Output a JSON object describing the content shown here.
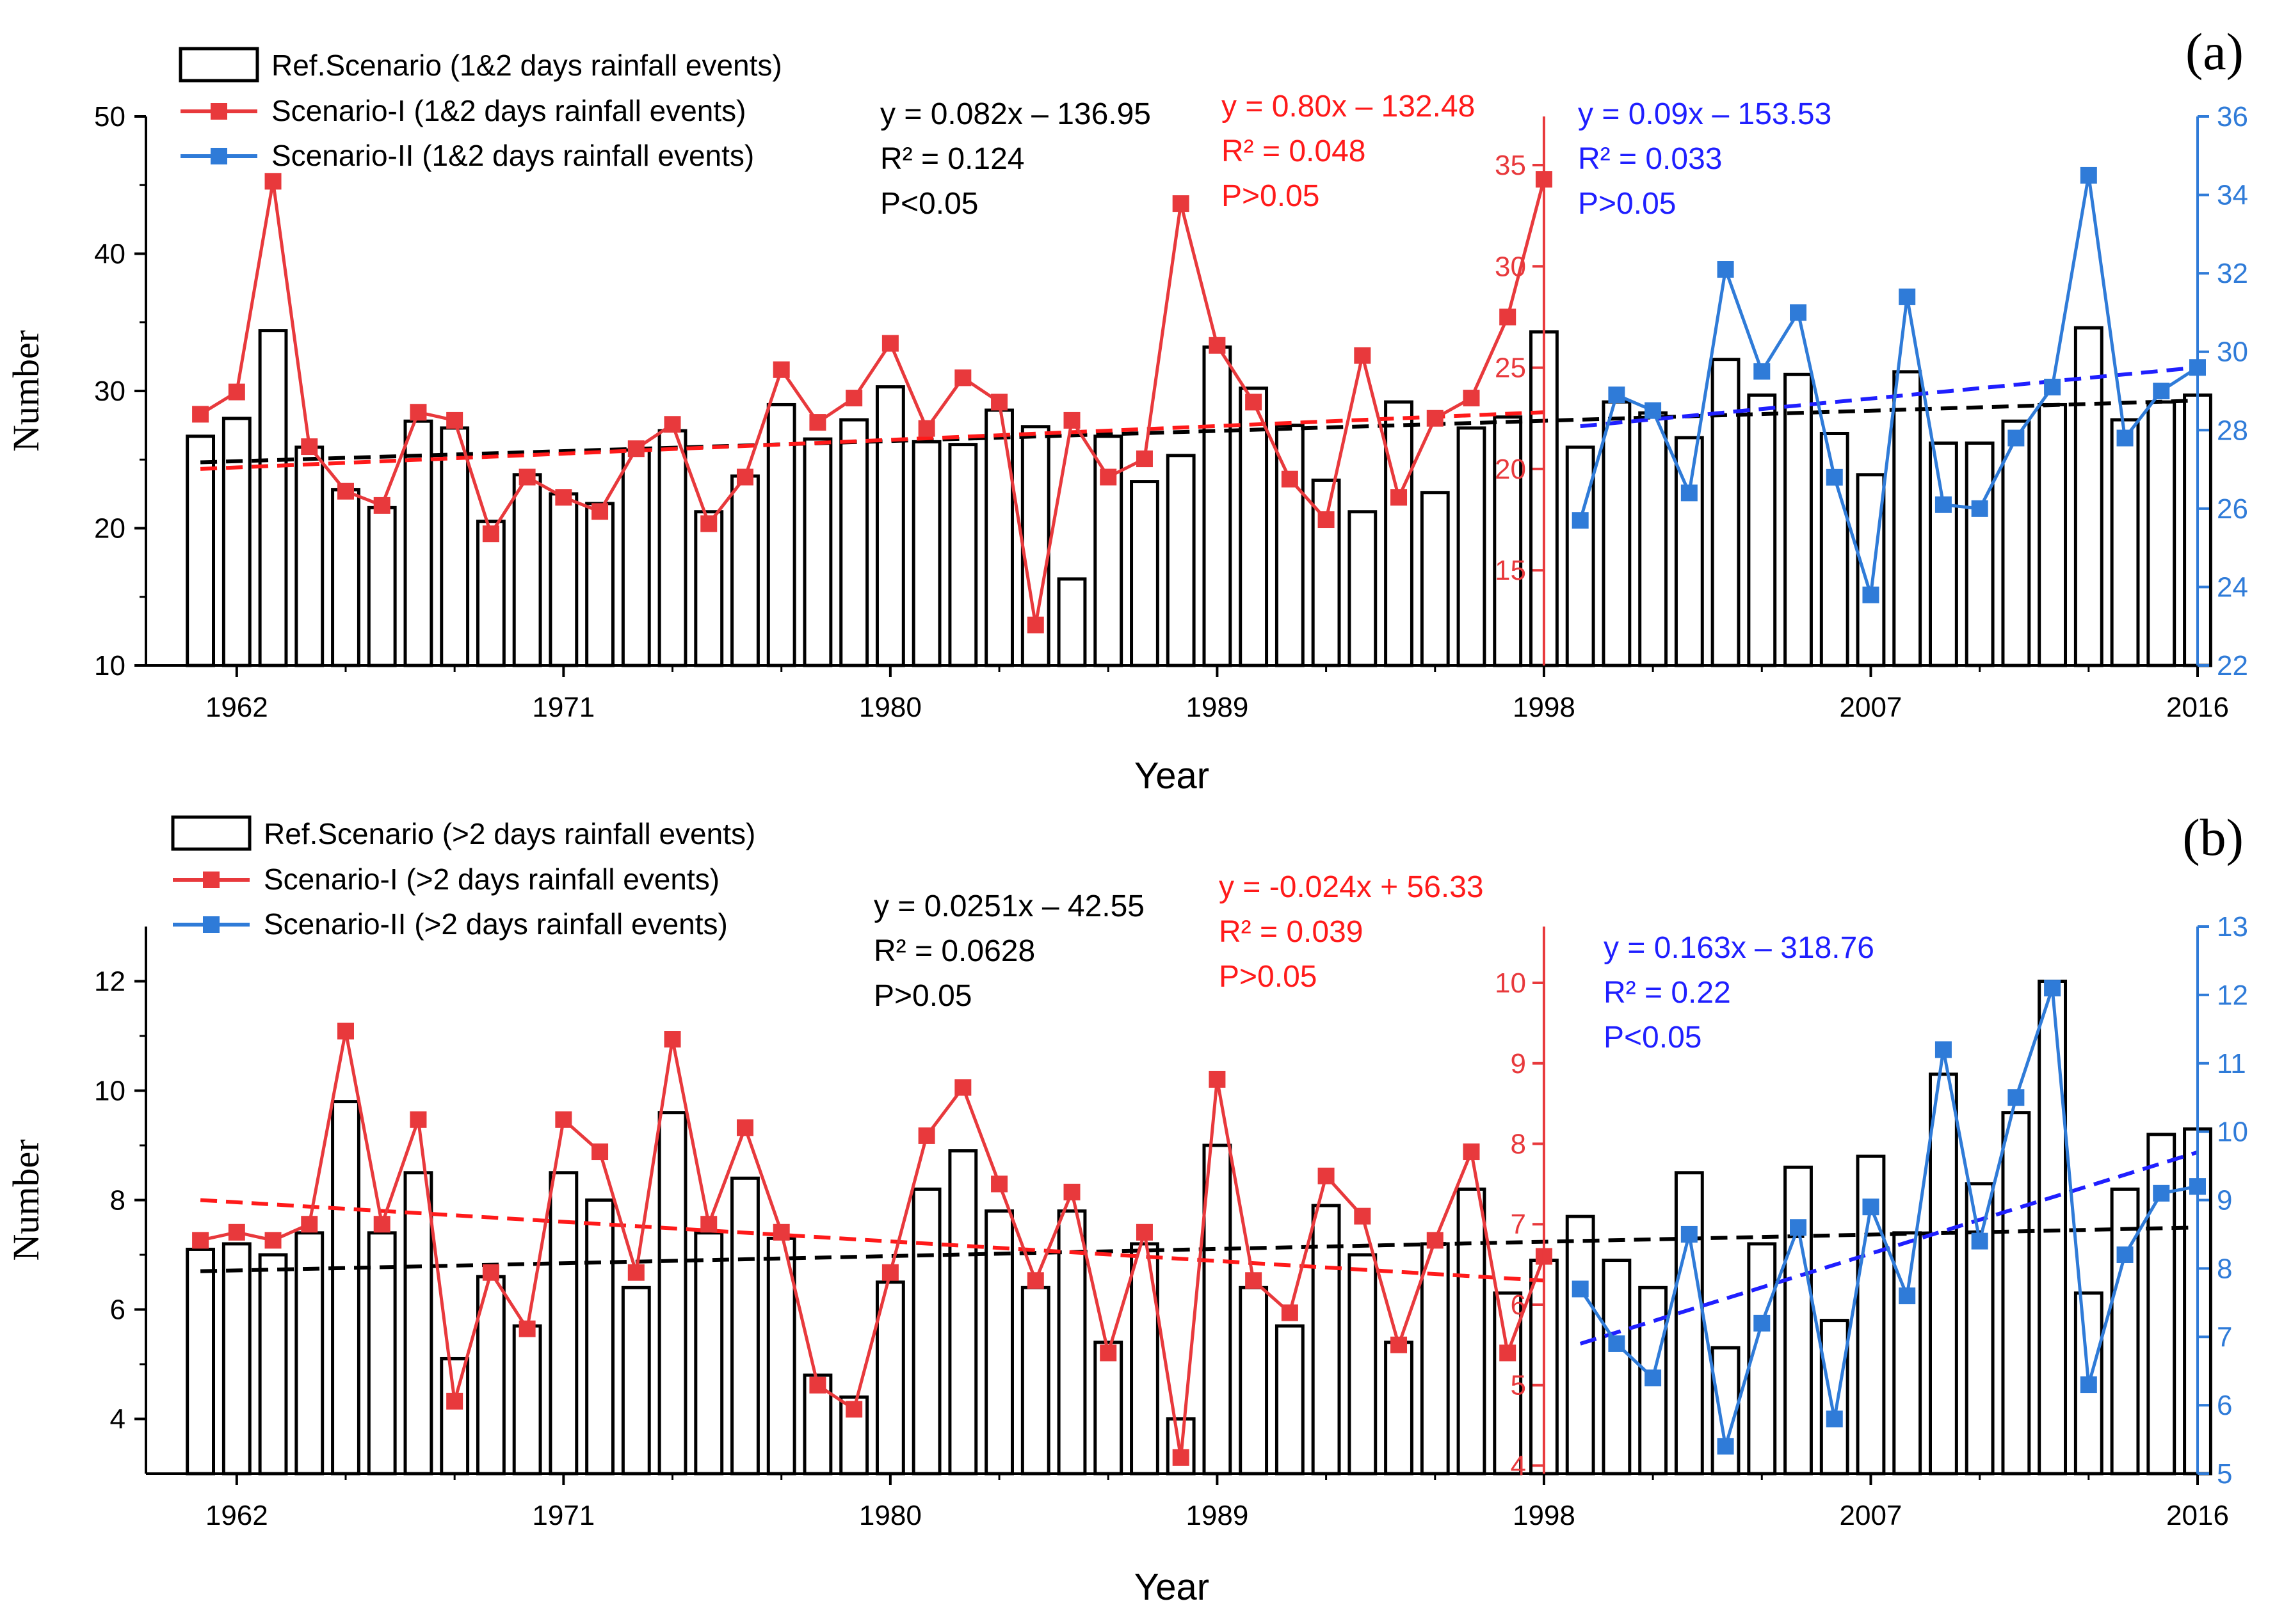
{
  "colors": {
    "ref": "#000000",
    "s1": "#e8393c",
    "s2": "#2f7bd8",
    "s1_trend": "#ff1a1a",
    "s2_trend": "#1f1fff",
    "ref_trend": "#000000",
    "s2_axis": "#2f7bd8"
  },
  "chart_data": [
    {
      "type": "bar",
      "panel_label": "(a)",
      "xlabel": "Year",
      "ylabel": "Number",
      "x_tick_labels": [
        "1962",
        "1971",
        "1980",
        "1989",
        "1998",
        "2007",
        "2016"
      ],
      "xlim": [
        1959.5,
        2016
      ],
      "left_axis": {
        "ylim": [
          10,
          50
        ],
        "ticks": [
          10,
          20,
          30,
          40,
          50
        ]
      },
      "s1_axis": {
        "ylim": [
          10.3,
          37.4
        ],
        "ticks": [
          15,
          20,
          25,
          30,
          35
        ],
        "at_year": 1998
      },
      "s2_axis": {
        "ylim": [
          22,
          36
        ],
        "ticks": [
          22,
          24,
          26,
          28,
          30,
          32,
          34,
          36
        ]
      },
      "legend": [
        "Ref.Scenario (1&2 days rainfall events)",
        "Scenario-I (1&2 days rainfall events)",
        "Scenario-II (1&2 days rainfall events)"
      ],
      "annotations": {
        "ref": [
          "y = 0.082x – 136.95",
          "R² = 0.124",
          "P<0.05"
        ],
        "s1": [
          "y = 0.80x – 132.48",
          "R² = 0.048",
          "P>0.05"
        ],
        "s2": [
          "y = 0.09x – 153.53",
          "R² = 0.033",
          "P>0.05"
        ]
      },
      "series": [
        {
          "name": "Ref.Scenario",
          "x": [
            1961,
            1962,
            1963,
            1964,
            1965,
            1966,
            1967,
            1968,
            1969,
            1970,
            1971,
            1972,
            1973,
            1974,
            1975,
            1976,
            1977,
            1978,
            1979,
            1980,
            1981,
            1982,
            1983,
            1984,
            1985,
            1986,
            1987,
            1988,
            1989,
            1990,
            1991,
            1992,
            1993,
            1994,
            1995,
            1996,
            1997,
            1998,
            1999,
            2000,
            2001,
            2002,
            2003,
            2004,
            2005,
            2006,
            2007,
            2008,
            2009,
            2010,
            2011,
            2012,
            2013,
            2014,
            2015,
            2016
          ],
          "values": [
            26.7,
            28.0,
            34.4,
            25.9,
            22.8,
            21.5,
            27.8,
            27.3,
            20.5,
            23.9,
            22.5,
            21.8,
            25.7,
            27.1,
            21.2,
            23.8,
            29.0,
            26.5,
            27.9,
            30.3,
            26.3,
            26.1,
            28.6,
            27.4,
            16.3,
            26.7,
            23.4,
            25.3,
            33.2,
            30.2,
            27.5,
            23.5,
            21.2,
            29.2,
            22.6,
            27.3,
            28.1,
            34.3,
            25.9,
            29.2,
            28.4,
            26.6,
            32.3,
            29.7,
            31.2,
            26.9,
            23.9,
            31.4,
            26.2,
            26.2,
            27.8,
            29.0,
            34.6,
            27.9,
            29.2,
            29.7
          ]
        },
        {
          "name": "Scenario-I",
          "x": [
            1961,
            1962,
            1963,
            1964,
            1965,
            1966,
            1967,
            1968,
            1969,
            1970,
            1971,
            1972,
            1973,
            1974,
            1975,
            1976,
            1977,
            1978,
            1979,
            1980,
            1981,
            1982,
            1983,
            1984,
            1985,
            1986,
            1987,
            1988,
            1989,
            1990,
            1991,
            1992,
            1993,
            1994,
            1995,
            1996,
            1997,
            1998
          ],
          "values": [
            22.7,
            23.8,
            34.2,
            21.1,
            18.9,
            18.2,
            22.8,
            22.4,
            16.8,
            19.6,
            18.6,
            17.9,
            21.0,
            22.2,
            17.3,
            19.6,
            24.9,
            22.3,
            23.5,
            26.2,
            22.0,
            24.5,
            23.3,
            12.3,
            22.4,
            19.6,
            20.5,
            33.1,
            26.1,
            23.3,
            19.5,
            17.5,
            25.6,
            18.6,
            22.5,
            23.5,
            27.5,
            34.3
          ]
        },
        {
          "name": "Scenario-II",
          "x": [
            1999,
            2000,
            2001,
            2002,
            2003,
            2004,
            2005,
            2006,
            2007,
            2008,
            2009,
            2010,
            2011,
            2012,
            2013,
            2014,
            2015,
            2016
          ],
          "values": [
            25.7,
            28.9,
            28.5,
            26.4,
            32.1,
            29.5,
            31.0,
            26.8,
            23.8,
            31.4,
            26.1,
            26.0,
            27.8,
            29.1,
            34.5,
            27.8,
            29.0,
            29.6
          ]
        }
      ],
      "trends": {
        "ref": {
          "x": [
            1961,
            2016
          ],
          "y": [
            24.8,
            29.3
          ]
        },
        "s1": {
          "x": [
            1961,
            1998
          ],
          "y": [
            20.0,
            22.8
          ]
        },
        "s2": {
          "x": [
            1999,
            2016
          ],
          "y": [
            28.1,
            29.6
          ]
        }
      }
    },
    {
      "type": "bar",
      "panel_label": "(b)",
      "xlabel": "Year",
      "ylabel": "Number",
      "x_tick_labels": [
        "1962",
        "1971",
        "1980",
        "1989",
        "1998",
        "2007",
        "2016"
      ],
      "xlim": [
        1959.5,
        2016
      ],
      "left_axis": {
        "ylim": [
          3,
          13
        ],
        "ticks": [
          4,
          6,
          8,
          10,
          12
        ]
      },
      "s1_axis": {
        "ylim": [
          3.9,
          10.7
        ],
        "ticks": [
          4,
          5,
          6,
          7,
          8,
          9,
          10
        ],
        "at_year": 1998
      },
      "s2_axis": {
        "ylim": [
          5,
          13
        ],
        "ticks": [
          5,
          6,
          7,
          8,
          9,
          10,
          11,
          12,
          13
        ]
      },
      "legend": [
        "Ref.Scenario (>2 days rainfall events)",
        "Scenario-I (>2 days rainfall events)",
        "Scenario-II (>2 days rainfall events)"
      ],
      "annotations": {
        "ref": [
          "y = 0.0251x – 42.55",
          "R² = 0.0628",
          "P>0.05"
        ],
        "s1": [
          "y = -0.024x + 56.33",
          "R² = 0.039",
          "P>0.05"
        ],
        "s2": [
          "y = 0.163x – 318.76",
          "R² = 0.22",
          "P<0.05"
        ]
      },
      "series": [
        {
          "name": "Ref.Scenario",
          "x": [
            1961,
            1962,
            1963,
            1964,
            1965,
            1966,
            1967,
            1968,
            1969,
            1970,
            1971,
            1972,
            1973,
            1974,
            1975,
            1976,
            1977,
            1978,
            1979,
            1980,
            1981,
            1982,
            1983,
            1984,
            1985,
            1986,
            1987,
            1988,
            1989,
            1990,
            1991,
            1992,
            1993,
            1994,
            1995,
            1996,
            1997,
            1998,
            1999,
            2000,
            2001,
            2002,
            2003,
            2004,
            2005,
            2006,
            2007,
            2008,
            2009,
            2010,
            2011,
            2012,
            2013,
            2014,
            2015,
            2016
          ],
          "values": [
            7.1,
            7.2,
            7.0,
            7.4,
            9.8,
            7.4,
            8.5,
            5.1,
            6.6,
            5.7,
            8.5,
            8.0,
            6.4,
            9.6,
            7.4,
            8.4,
            7.3,
            4.8,
            4.4,
            6.5,
            8.2,
            8.9,
            7.8,
            6.4,
            7.8,
            5.4,
            7.2,
            4.0,
            9.0,
            6.4,
            5.7,
            7.9,
            7.0,
            5.4,
            7.2,
            8.2,
            6.3,
            6.9,
            7.7,
            6.9,
            6.4,
            8.5,
            5.3,
            7.2,
            8.6,
            5.8,
            8.8,
            7.4,
            10.3,
            8.3,
            9.6,
            12.0,
            6.3,
            8.2,
            9.2,
            9.3
          ]
        },
        {
          "name": "Scenario-I",
          "x": [
            1961,
            1962,
            1963,
            1964,
            1965,
            1966,
            1967,
            1968,
            1969,
            1970,
            1971,
            1972,
            1973,
            1974,
            1975,
            1976,
            1977,
            1978,
            1979,
            1980,
            1981,
            1982,
            1983,
            1984,
            1985,
            1986,
            1987,
            1988,
            1989,
            1990,
            1991,
            1992,
            1993,
            1994,
            1995,
            1996,
            1997,
            1998
          ],
          "values": [
            6.8,
            6.9,
            6.8,
            7.0,
            9.4,
            7.0,
            8.3,
            4.8,
            6.4,
            5.7,
            8.3,
            7.9,
            6.4,
            9.3,
            7.0,
            8.2,
            6.9,
            5.0,
            4.7,
            6.4,
            8.1,
            8.7,
            7.5,
            6.3,
            7.4,
            5.4,
            6.9,
            4.1,
            8.8,
            6.3,
            5.9,
            7.6,
            7.1,
            5.5,
            6.8,
            7.9,
            5.4,
            6.6
          ]
        },
        {
          "name": "Scenario-II",
          "x": [
            1999,
            2000,
            2001,
            2002,
            2003,
            2004,
            2005,
            2006,
            2007,
            2008,
            2009,
            2010,
            2011,
            2012,
            2013,
            2014,
            2015,
            2016
          ],
          "values": [
            7.7,
            6.9,
            6.4,
            8.5,
            5.4,
            7.2,
            8.6,
            5.8,
            8.9,
            7.6,
            11.2,
            8.4,
            10.5,
            12.1,
            6.3,
            8.2,
            9.1,
            9.2
          ]
        }
      ],
      "trends": {
        "ref": {
          "x": [
            1961,
            2016
          ],
          "y": [
            6.7,
            7.5
          ]
        },
        "s1": {
          "x": [
            1961,
            1998
          ],
          "y": [
            7.3,
            6.3
          ]
        },
        "s2": {
          "x": [
            1999,
            2016
          ],
          "y": [
            6.9,
            9.7
          ]
        }
      }
    }
  ]
}
